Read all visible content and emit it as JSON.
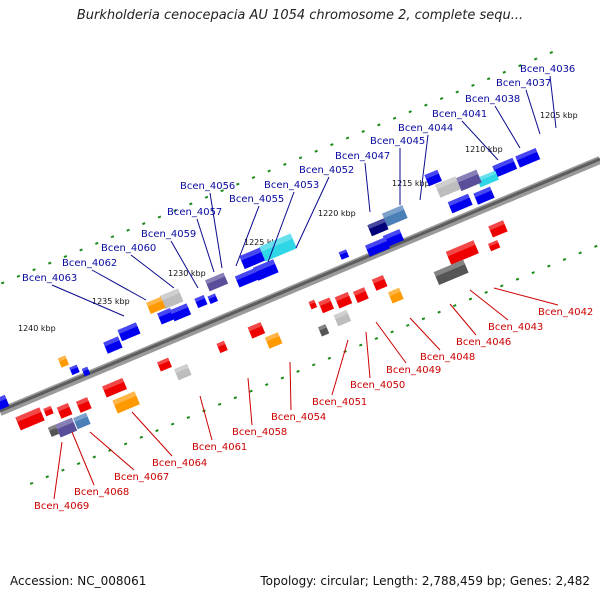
{
  "title": "Burkholderia cenocepacia AU 1054 chromosome 2, complete sequ...",
  "accession": "Accession: NC_008061",
  "summary": "Topology: circular; Length: 2,788,459 bp; Genes: 2,482",
  "tick_labels": [
    "1205 kbp",
    "1210 kbp",
    "1215 kbp",
    "1220 kbp",
    "1225 kbp",
    "1230 kbp",
    "1235 kbp",
    "1240 kbp"
  ],
  "colors": {
    "forward_label": "#0a0aa0",
    "reverse_label": "#cc0000",
    "forward_gene": "#0000ee",
    "reverse_gene": "#ee0000",
    "backbone": "#777777",
    "tick": "#1a8a1a"
  },
  "forward_genes": [
    "Bcen_4036",
    "Bcen_4037",
    "Bcen_4038",
    "Bcen_4041",
    "Bcen_4044",
    "Bcen_4045",
    "Bcen_4047",
    "Bcen_4052",
    "Bcen_4053",
    "Bcen_4055",
    "Bcen_4056",
    "Bcen_4057",
    "Bcen_4059",
    "Bcen_4060",
    "Bcen_4062",
    "Bcen_4063"
  ],
  "reverse_genes": [
    "Bcen_4042",
    "Bcen_4043",
    "Bcen_4046",
    "Bcen_4048",
    "Bcen_4049",
    "Bcen_4050",
    "Bcen_4051",
    "Bcen_4054",
    "Bcen_4058",
    "Bcen_4061",
    "Bcen_4064",
    "Bcen_4067",
    "Bcen_4068",
    "Bcen_4069"
  ]
}
